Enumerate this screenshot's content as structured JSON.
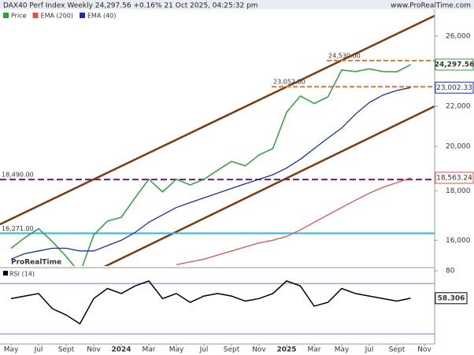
{
  "header": {
    "title": "DAX40 Perf Index Weekly 24,297.56 +0.16% 21 Oct 2025, 04:25:32 pm",
    "site": "www.ProRealTime.com",
    "watermark": "ProRealTime"
  },
  "chart_data": [
    {
      "type": "line",
      "title": "Price",
      "log": true,
      "categories": [
        "May",
        null,
        "Jul",
        null,
        "Sept",
        null,
        "Nov",
        null,
        "2024",
        null,
        "Mar",
        null,
        "May",
        null,
        "Jul",
        null,
        "Sept",
        null,
        "Nov",
        null,
        "2025",
        null,
        "Mar",
        null,
        "May",
        null,
        "Jul",
        null,
        "Sept",
        null,
        "Nov"
      ],
      "series": [
        {
          "name": "Price",
          "color": "#2e9e3e",
          "values": [
            15700,
            16100,
            16450,
            15950,
            15400,
            14800,
            16200,
            16750,
            16900,
            17700,
            18500,
            17950,
            18500,
            18250,
            18500,
            18900,
            19300,
            19100,
            19600,
            19900,
            21700,
            22550,
            22150,
            22500,
            23990,
            23900,
            24050,
            23900,
            23880,
            24297.56,
            null
          ],
          "value_labels": [
            null,
            null,
            null,
            null,
            null,
            null,
            null,
            null,
            null,
            null,
            null,
            null,
            null,
            null,
            null,
            null,
            null,
            null,
            null,
            null,
            null,
            null,
            null,
            null,
            null,
            null,
            null,
            null,
            null,
            "24,297.56",
            null
          ]
        },
        {
          "name": "EMA (200)",
          "color": "#d9534f",
          "values": [
            null,
            null,
            null,
            null,
            null,
            null,
            null,
            null,
            null,
            null,
            null,
            null,
            15100,
            15200,
            15300,
            15450,
            15600,
            15750,
            15900,
            16000,
            16150,
            16400,
            16700,
            17000,
            17300,
            17600,
            17900,
            18150,
            18350,
            18563.24,
            null
          ],
          "value_labels": [
            null,
            null,
            null,
            null,
            null,
            null,
            null,
            null,
            null,
            null,
            null,
            null,
            null,
            null,
            null,
            null,
            null,
            null,
            null,
            null,
            null,
            null,
            null,
            null,
            null,
            null,
            null,
            null,
            null,
            "18,563.24",
            null
          ]
        },
        {
          "name": "EMA (40)",
          "color": "#1a2fb0",
          "values": [
            15300,
            15500,
            15600,
            15700,
            15700,
            15600,
            15600,
            15800,
            16000,
            16300,
            16700,
            17000,
            17300,
            17500,
            17700,
            17900,
            18100,
            18300,
            18500,
            18700,
            19000,
            19400,
            19900,
            20400,
            20900,
            21600,
            22200,
            22600,
            22850,
            23002.33,
            null
          ],
          "value_labels": [
            null,
            null,
            null,
            null,
            null,
            null,
            null,
            null,
            null,
            null,
            null,
            null,
            null,
            null,
            null,
            null,
            null,
            null,
            null,
            null,
            null,
            null,
            null,
            null,
            null,
            null,
            null,
            null,
            null,
            "23,002.33",
            null
          ]
        }
      ],
      "ylim": [
        15050,
        27700
      ],
      "yticks": [
        {
          "value": 16000,
          "label": "16,000"
        },
        {
          "value": 18000,
          "label": "18,000"
        },
        {
          "value": 20000,
          "label": "20,000"
        },
        {
          "value": 22000,
          "label": "22,000"
        },
        {
          "value": 26000,
          "label": "26,000"
        }
      ],
      "levels": [
        {
          "value": 24530,
          "label": "24,530.00",
          "color": "#f07a30"
        },
        {
          "value": 23052,
          "label": "23,052.00",
          "color": "#f07a30"
        },
        {
          "value": 18490,
          "label": "18,490.00",
          "color": "#7a1fa2"
        },
        {
          "value": 16271,
          "label": "16,271.00",
          "color": "#2ab7e8"
        }
      ]
    },
    {
      "type": "line",
      "title": "RSI (14)",
      "series": [
        {
          "name": "RSI",
          "color": "#000000",
          "values": [
            58,
            60,
            62,
            50,
            45,
            38,
            58,
            66,
            62,
            68,
            72,
            58,
            62,
            55,
            60,
            62,
            60,
            56,
            58,
            62,
            72,
            68,
            52,
            55,
            66,
            62,
            60,
            58,
            56,
            58.306,
            null
          ]
        }
      ],
      "ylim": [
        22,
        81.3
      ],
      "yticks": [
        60,
        80
      ],
      "bands": [
        70,
        30
      ]
    }
  ]
}
